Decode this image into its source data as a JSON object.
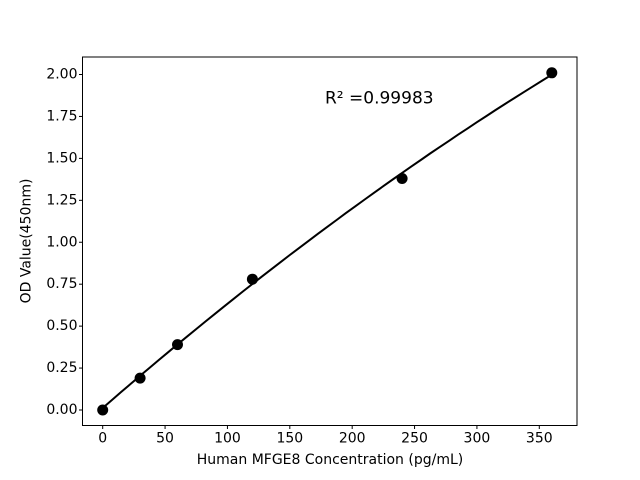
{
  "figure": {
    "background": "#ffffff",
    "foreground": "#000000"
  },
  "chart_data": {
    "type": "scatter",
    "title": "",
    "xlabel": "Human MFGE8 Concentration (pg/mL)",
    "ylabel": "OD Value(450nm)",
    "x": [
      0,
      30,
      60,
      120,
      240,
      360
    ],
    "y": [
      0.0,
      0.19,
      0.39,
      0.78,
      1.38,
      2.01
    ],
    "annotation": "R² =0.99983",
    "r_squared": 0.99983,
    "x_ticks": [
      0,
      50,
      100,
      150,
      200,
      250,
      300,
      350
    ],
    "y_ticks": [
      "0.00",
      "0.25",
      "0.50",
      "0.75",
      "1.00",
      "1.25",
      "1.50",
      "1.75",
      "2.00"
    ],
    "y_tick_values": [
      0.0,
      0.25,
      0.5,
      0.75,
      1.0,
      1.25,
      1.5,
      1.75,
      2.0
    ],
    "xlim": [
      -18,
      380
    ],
    "ylim": [
      -0.09,
      2.11
    ],
    "grid": false,
    "legend": "none",
    "marker_color": "#000000",
    "line_color": "#000000",
    "fit": {
      "type": "quadratic",
      "coefficients": [
        0.01206,
        0.0064772,
        -2.6632e-06
      ],
      "x_range": [
        0,
        360
      ]
    }
  }
}
